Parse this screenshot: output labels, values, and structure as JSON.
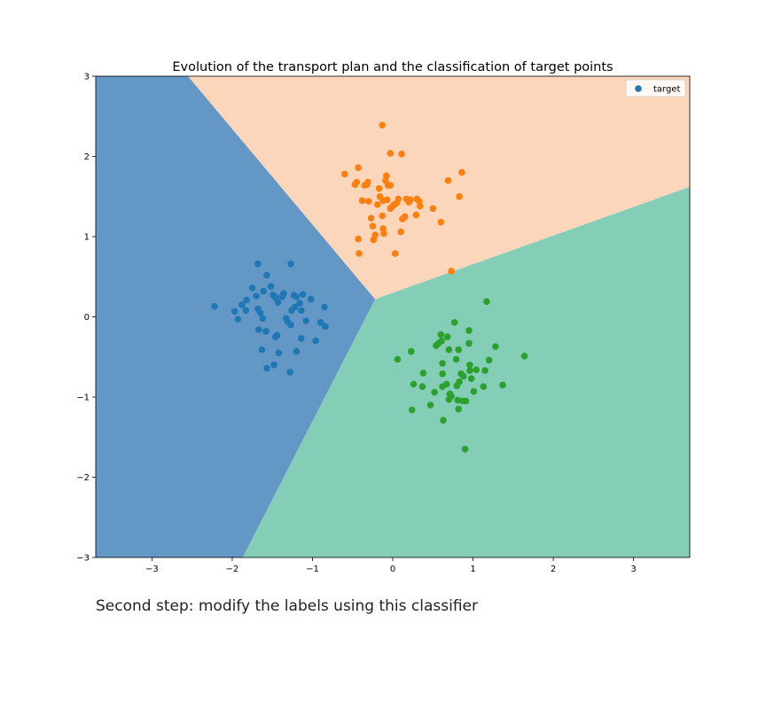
{
  "chart_data": {
    "type": "scatter",
    "title": "Evolution of the transport plan and the classification of target points",
    "xlabel": "",
    "ylabel": "",
    "xlim": [
      -3.7,
      3.7
    ],
    "ylim": [
      -3,
      3
    ],
    "xticks": [
      -3,
      -2,
      -1,
      0,
      1,
      2,
      3
    ],
    "yticks": [
      -3,
      -2,
      -1,
      0,
      1,
      2,
      3
    ],
    "xtick_labels": [
      "−3",
      "−2",
      "−1",
      "0",
      "1",
      "2",
      "3"
    ],
    "ytick_labels": [
      "−3",
      "−2",
      "−1",
      "0",
      "1",
      "2",
      "3"
    ],
    "grid": false,
    "legend": {
      "position": "top-right",
      "entries": [
        "target"
      ]
    },
    "background_regions": [
      {
        "class": "blue",
        "color": "#6297c6",
        "polygon": [
          [
            -3.7,
            3
          ],
          [
            -2.55,
            3
          ],
          [
            -0.22,
            0.22
          ],
          [
            -1.87,
            -3
          ],
          [
            -3.7,
            -3
          ]
        ]
      },
      {
        "class": "orange",
        "color": "#fbd6ba",
        "polygon": [
          [
            -2.55,
            3
          ],
          [
            3.7,
            3
          ],
          [
            3.7,
            1.62
          ],
          [
            -0.22,
            0.22
          ]
        ]
      },
      {
        "class": "green",
        "color": "#84cdb6",
        "polygon": [
          [
            -0.22,
            0.22
          ],
          [
            3.7,
            1.62
          ],
          [
            3.7,
            -3
          ],
          [
            -1.87,
            -3
          ]
        ]
      }
    ],
    "series": [
      {
        "name": "target",
        "color": "#1f77b4",
        "points": [
          [
            -2.22,
            0.13
          ],
          [
            -1.97,
            0.07
          ],
          [
            -1.93,
            -0.03
          ],
          [
            -1.88,
            0.15
          ],
          [
            -1.83,
            0.08
          ],
          [
            -1.82,
            0.21
          ],
          [
            -1.75,
            0.36
          ],
          [
            -1.7,
            0.26
          ],
          [
            -1.68,
            0.66
          ],
          [
            -1.68,
            0.1
          ],
          [
            -1.67,
            -0.16
          ],
          [
            -1.65,
            0.05
          ],
          [
            -1.62,
            -0.02
          ],
          [
            -1.61,
            0.32
          ],
          [
            -1.63,
            -0.41
          ],
          [
            -1.58,
            -0.18
          ],
          [
            -1.57,
            0.52
          ],
          [
            -1.57,
            -0.64
          ],
          [
            -1.52,
            0.38
          ],
          [
            -1.49,
            0.27
          ],
          [
            -1.46,
            -0.25
          ],
          [
            -1.48,
            -0.6
          ],
          [
            -1.44,
            -0.23
          ],
          [
            -1.43,
            0.18
          ],
          [
            -1.42,
            -0.45
          ],
          [
            -1.38,
            0.25
          ],
          [
            -1.36,
            0.29
          ],
          [
            -1.33,
            -0.02
          ],
          [
            -1.31,
            -0.06
          ],
          [
            -1.27,
            0.66
          ],
          [
            -1.28,
            -0.69
          ],
          [
            -1.26,
            0.08
          ],
          [
            -1.27,
            -0.1
          ],
          [
            -1.22,
            0.12
          ],
          [
            -1.2,
            0.25
          ],
          [
            -1.2,
            -0.43
          ],
          [
            -1.16,
            0.17
          ],
          [
            -1.14,
            0.08
          ],
          [
            -1.14,
            -0.27
          ],
          [
            -1.12,
            0.28
          ],
          [
            -1.08,
            -0.05
          ],
          [
            -1.02,
            0.22
          ],
          [
            -0.96,
            -0.3
          ],
          [
            -0.9,
            -0.07
          ],
          [
            -0.85,
            0.12
          ],
          [
            -0.84,
            -0.12
          ],
          [
            -1.23,
            0.27
          ],
          [
            -1.46,
            0.24
          ]
        ]
      },
      {
        "name": "",
        "color": "#ff7f0e",
        "points": [
          [
            -0.6,
            1.78
          ],
          [
            -0.47,
            1.65
          ],
          [
            -0.45,
            1.68
          ],
          [
            -0.43,
            1.86
          ],
          [
            -0.38,
            1.45
          ],
          [
            -0.32,
            1.65
          ],
          [
            -0.31,
            1.68
          ],
          [
            -0.3,
            1.44
          ],
          [
            -0.27,
            1.23
          ],
          [
            -0.25,
            1.13
          ],
          [
            -0.24,
            0.96
          ],
          [
            -0.22,
            1.02
          ],
          [
            -0.19,
            1.4
          ],
          [
            -0.17,
            1.6
          ],
          [
            -0.16,
            1.5
          ],
          [
            -0.13,
            2.39
          ],
          [
            -0.12,
            1.45
          ],
          [
            -0.13,
            1.26
          ],
          [
            -0.12,
            1.1
          ],
          [
            -0.11,
            1.04
          ],
          [
            -0.09,
            1.7
          ],
          [
            -0.08,
            1.76
          ],
          [
            -0.06,
            1.64
          ],
          [
            -0.03,
            1.35
          ],
          [
            -0.03,
            2.04
          ],
          [
            -0.03,
            1.64
          ],
          [
            0.0,
            1.38
          ],
          [
            0.02,
            1.4
          ],
          [
            0.03,
            0.79
          ],
          [
            0.05,
            1.42
          ],
          [
            0.07,
            1.47
          ],
          [
            0.1,
            1.06
          ],
          [
            0.11,
            2.03
          ],
          [
            0.12,
            1.22
          ],
          [
            0.15,
            1.25
          ],
          [
            0.17,
            1.47
          ],
          [
            0.2,
            1.43
          ],
          [
            0.22,
            1.46
          ],
          [
            0.29,
            1.27
          ],
          [
            0.3,
            1.47
          ],
          [
            0.33,
            1.44
          ],
          [
            0.34,
            1.38
          ],
          [
            0.5,
            1.35
          ],
          [
            0.6,
            1.18
          ],
          [
            0.69,
            1.7
          ],
          [
            0.73,
            0.57
          ],
          [
            0.83,
            1.5
          ],
          [
            0.86,
            1.8
          ],
          [
            -0.43,
            0.97
          ],
          [
            -0.42,
            0.79
          ],
          [
            -0.35,
            1.64
          ],
          [
            -0.07,
            1.46
          ]
        ]
      },
      {
        "name": "",
        "color": "#2ca02c",
        "points": [
          [
            0.06,
            -0.53
          ],
          [
            0.23,
            -0.43
          ],
          [
            0.24,
            -1.16
          ],
          [
            0.26,
            -0.84
          ],
          [
            0.37,
            -0.87
          ],
          [
            0.38,
            -0.7
          ],
          [
            0.47,
            -1.1
          ],
          [
            0.52,
            -0.94
          ],
          [
            0.54,
            -0.36
          ],
          [
            0.57,
            -0.33
          ],
          [
            0.6,
            -0.22
          ],
          [
            0.61,
            -0.3
          ],
          [
            0.62,
            -0.71
          ],
          [
            0.62,
            -0.58
          ],
          [
            0.63,
            -1.29
          ],
          [
            0.62,
            -0.87
          ],
          [
            0.67,
            -0.84
          ],
          [
            0.68,
            -0.25
          ],
          [
            0.7,
            -0.41
          ],
          [
            0.7,
            -1.03
          ],
          [
            0.71,
            -0.96
          ],
          [
            0.73,
            -0.99
          ],
          [
            0.77,
            -0.07
          ],
          [
            0.79,
            -0.53
          ],
          [
            0.8,
            -0.86
          ],
          [
            0.81,
            -1.04
          ],
          [
            0.83,
            -0.81
          ],
          [
            0.82,
            -1.15
          ],
          [
            0.82,
            -0.41
          ],
          [
            0.85,
            -0.71
          ],
          [
            0.87,
            -1.05
          ],
          [
            0.88,
            -0.74
          ],
          [
            0.9,
            -1.65
          ],
          [
            0.91,
            -1.05
          ],
          [
            0.95,
            -0.17
          ],
          [
            0.95,
            -0.33
          ],
          [
            0.96,
            -0.6
          ],
          [
            0.96,
            -0.67
          ],
          [
            0.98,
            -0.77
          ],
          [
            1.01,
            -0.93
          ],
          [
            1.04,
            -0.66
          ],
          [
            1.13,
            -0.87
          ],
          [
            1.15,
            -0.67
          ],
          [
            1.17,
            0.19
          ],
          [
            1.2,
            -0.54
          ],
          [
            1.28,
            -0.37
          ],
          [
            1.37,
            -0.85
          ],
          [
            1.64,
            -0.49
          ]
        ]
      }
    ]
  },
  "caption": "Second step: modify the labels using this classifier"
}
